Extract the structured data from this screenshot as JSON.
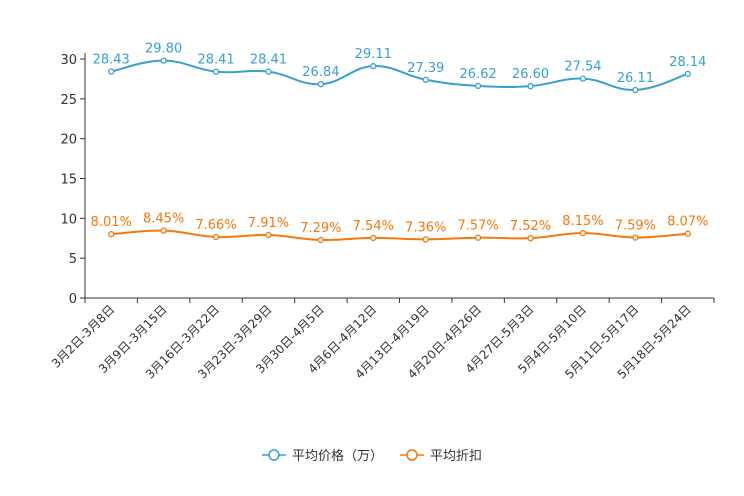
{
  "chart_data": {
    "type": "line",
    "title": "",
    "xlabel": "",
    "ylabel": "",
    "ylim": [
      0,
      30
    ],
    "yticks": [
      0,
      5,
      10,
      15,
      20,
      25,
      30
    ],
    "categories": [
      "3月2日-3月8日",
      "3月9日-3月15日",
      "3月16日-3月22日",
      "3月23日-3月29日",
      "3月30日-4月5日",
      "4月6日-4月12日",
      "4月13日-4月19日",
      "4月20日-4月26日",
      "4月27日-5月3日",
      "5月4日-5月10日",
      "5月11日-5月17日",
      "5月18日-5月24日"
    ],
    "series": [
      {
        "name": "平均价格（万）",
        "color": "#3a9fd1",
        "values": [
          28.43,
          29.8,
          28.41,
          28.41,
          26.84,
          29.11,
          27.39,
          26.62,
          26.6,
          27.54,
          26.11,
          28.14
        ],
        "labels": [
          "28.43",
          "29.80",
          "28.41",
          "28.41",
          "26.84",
          "29.11",
          "27.39",
          "26.62",
          "26.60",
          "27.54",
          "26.11",
          "28.14"
        ]
      },
      {
        "name": "平均折扣",
        "color": "#f5780c",
        "values": [
          8.01,
          8.45,
          7.66,
          7.91,
          7.29,
          7.54,
          7.36,
          7.57,
          7.52,
          8.15,
          7.59,
          8.07
        ],
        "labels": [
          "8.01%",
          "8.45%",
          "7.66%",
          "7.91%",
          "7.29%",
          "7.54%",
          "7.36%",
          "7.57%",
          "7.52%",
          "8.15%",
          "7.59%",
          "8.07%"
        ]
      }
    ],
    "legend": {
      "position": "bottom-center",
      "items": [
        "平均价格（万）",
        "平均折扣"
      ]
    },
    "grid": false
  }
}
